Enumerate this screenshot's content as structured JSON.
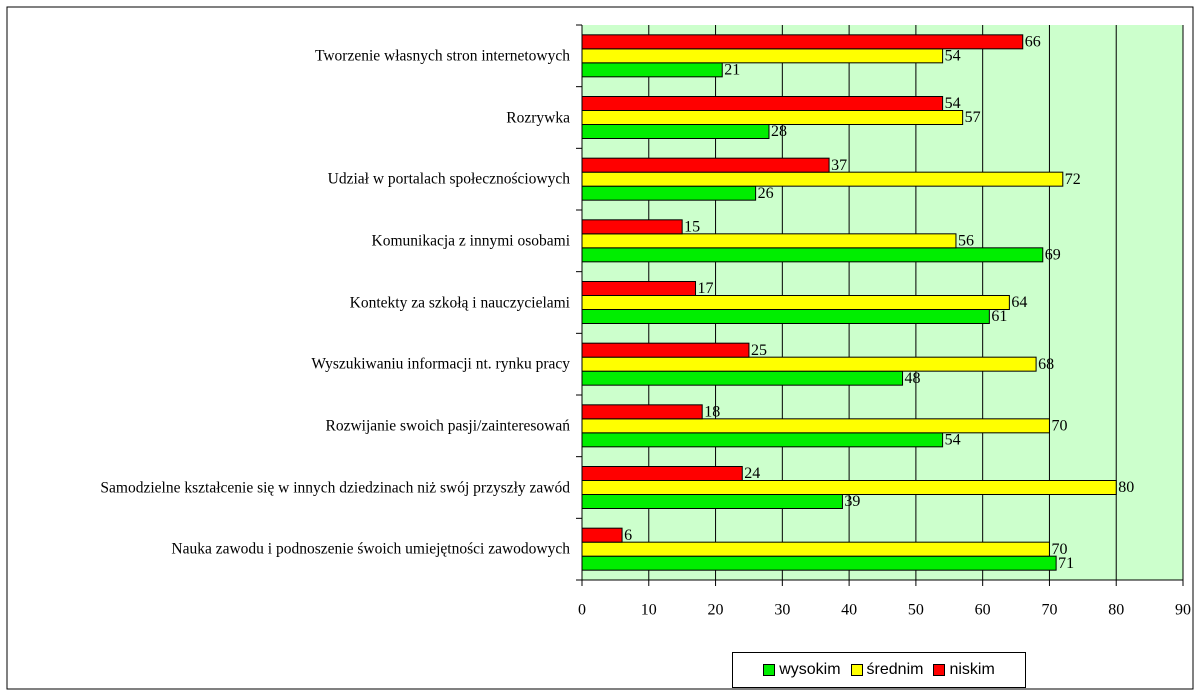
{
  "chart_data": {
    "type": "bar",
    "orientation": "horizontal",
    "categories": [
      "Tworzenie własnych stron internetowych",
      "Rozrywka",
      "Udział w portalach społecznościowych",
      "Komunikacja z innymi osobami",
      "Kontekty za szkołą i nauczycielami",
      "Wyszukiwaniu informacji nt. rynku pracy",
      "Rozwijanie swoich pasji/zainteresowań",
      "Samodzielne kształcenie się w innych dziedzinach niż swój przyszły zawód",
      "Nauka zawodu i podnoszenie śwoich umiejętności zawodowych"
    ],
    "series": [
      {
        "name": "wysokim",
        "color": "#00ee00",
        "values": [
          21,
          28,
          26,
          69,
          61,
          48,
          54,
          39,
          71
        ]
      },
      {
        "name": "średnim",
        "color": "#ffff00",
        "values": [
          54,
          57,
          72,
          56,
          64,
          68,
          70,
          80,
          70
        ]
      },
      {
        "name": "niskim",
        "color": "#ff0000",
        "values": [
          66,
          54,
          37,
          15,
          17,
          25,
          18,
          24,
          6
        ]
      }
    ],
    "xlim": [
      0,
      90
    ],
    "xticks": [
      0,
      10,
      20,
      30,
      40,
      50,
      60,
      70,
      80,
      90
    ],
    "grid": true,
    "plot_background": "#ccffcc",
    "legend": "bottom"
  }
}
